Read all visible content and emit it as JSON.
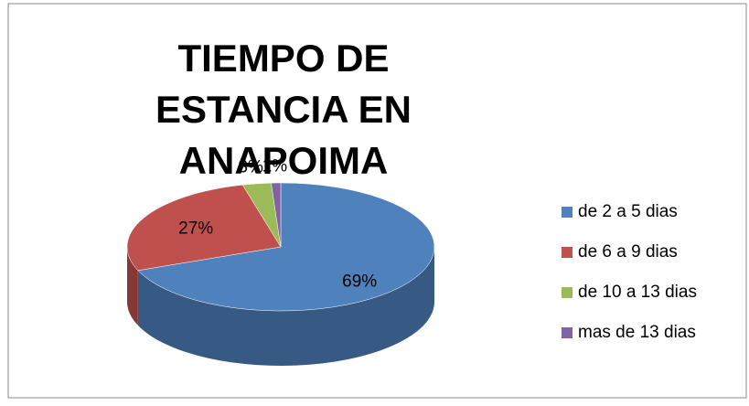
{
  "chart_data": {
    "type": "pie",
    "title": "TIEMPO DE ESTANCIA EN ANAPOIMA",
    "categories": [
      "de 2 a 5 dias",
      "de 6 a 9 dias",
      "de 10 a 13 dias",
      "mas de 13 dias"
    ],
    "values": [
      69,
      27,
      3,
      1
    ],
    "value_labels": [
      "69%",
      "27%",
      "3%",
      "1%"
    ],
    "colors": [
      "#4f81bd",
      "#c0504d",
      "#9bbb59",
      "#8064a2"
    ],
    "legend": "right"
  }
}
